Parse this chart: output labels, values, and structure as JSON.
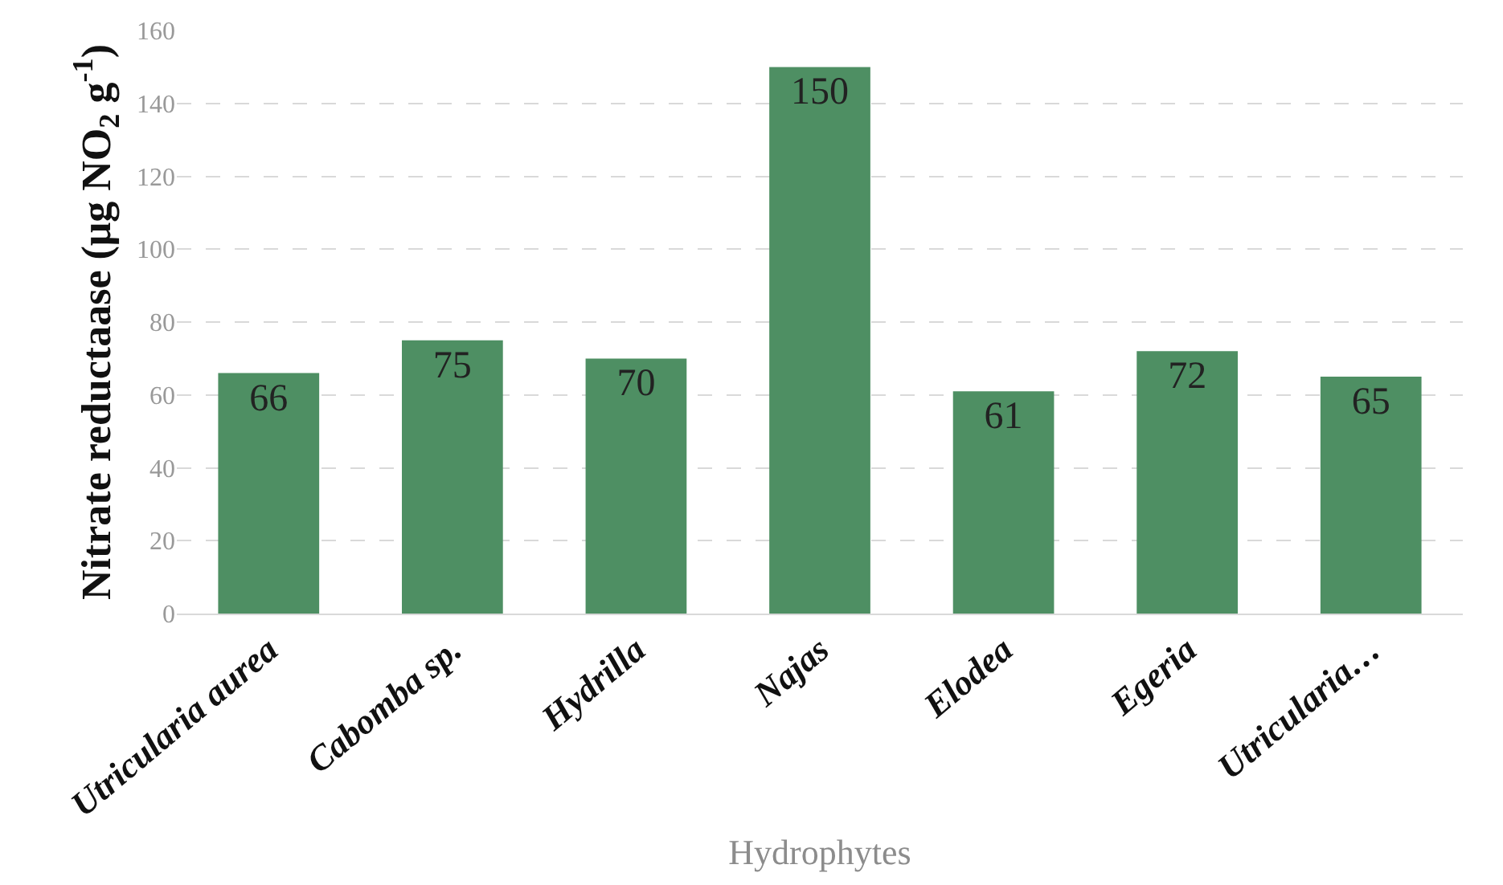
{
  "chart_data": {
    "type": "bar",
    "xlabel": "Hydrophytes",
    "ylabel": "Nitrate reductaase (μg NO$_{2}$ g$^{-1}$)",
    "categories": [
      "Utricularia aurea",
      "Cabomba sp.",
      "Hydrilla",
      "Najas",
      "Elodea",
      "Egeria",
      "Utricularia…"
    ],
    "values": [
      66,
      75,
      70,
      150,
      61,
      72,
      65
    ],
    "color": "#4e8f63",
    "ylim": [
      0,
      160
    ],
    "yticks": [
      0,
      20,
      40,
      60,
      80,
      100,
      120,
      140,
      160
    ],
    "grid": "y",
    "data_labels": true
  }
}
